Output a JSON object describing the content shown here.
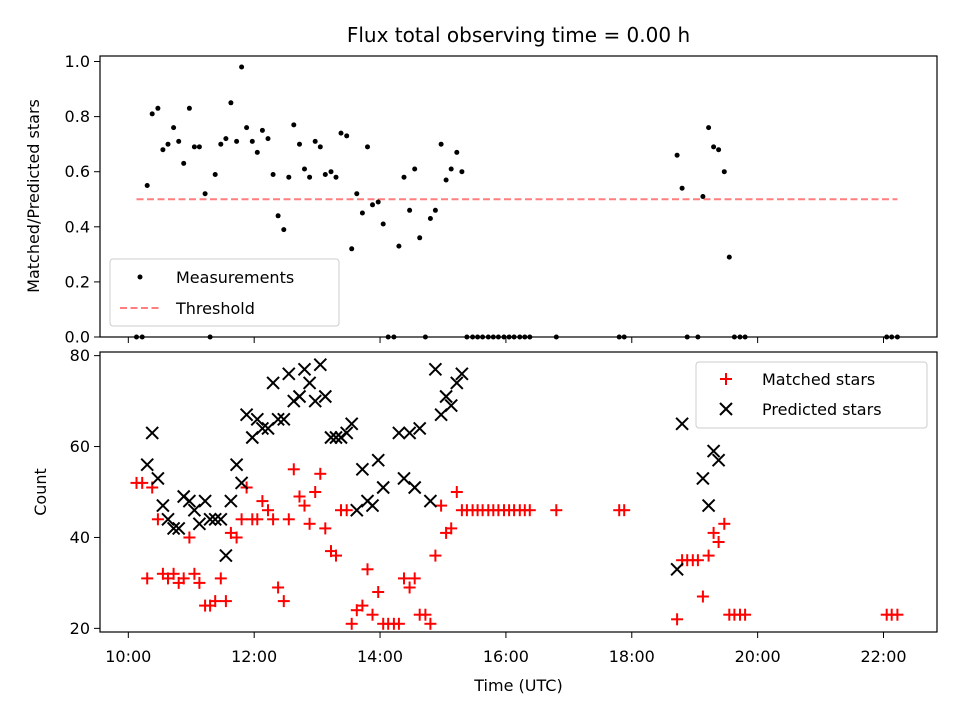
{
  "chart_data": [
    {
      "type": "scatter",
      "title": "Flux total observing time = 0.00 h",
      "xlabel": "",
      "ylabel": "Matched/Predicted stars",
      "xlim": [
        9.55,
        22.85
      ],
      "ylim": [
        0.0,
        1.02
      ],
      "yticks": [
        0.0,
        0.2,
        0.4,
        0.6,
        0.8,
        1.0
      ],
      "ytick_labels": [
        "0.0",
        "0.2",
        "0.4",
        "0.6",
        "0.8",
        "1.0"
      ],
      "legend_position": "lower-left",
      "series": [
        {
          "name": "Measurements",
          "marker": "dot",
          "color": "#000000",
          "points": [
            [
              10.13,
              0.0
            ],
            [
              10.22,
              0.0
            ],
            [
              10.3,
              0.55
            ],
            [
              10.38,
              0.81
            ],
            [
              10.47,
              0.83
            ],
            [
              10.55,
              0.68
            ],
            [
              10.63,
              0.7
            ],
            [
              10.72,
              0.76
            ],
            [
              10.8,
              0.71
            ],
            [
              10.88,
              0.63
            ],
            [
              10.97,
              0.83
            ],
            [
              11.05,
              0.69
            ],
            [
              11.13,
              0.69
            ],
            [
              11.22,
              0.52
            ],
            [
              11.3,
              0.0
            ],
            [
              11.38,
              0.59
            ],
            [
              11.47,
              0.7
            ],
            [
              11.55,
              0.72
            ],
            [
              11.63,
              0.85
            ],
            [
              11.72,
              0.71
            ],
            [
              11.8,
              0.98
            ],
            [
              11.88,
              0.76
            ],
            [
              11.97,
              0.71
            ],
            [
              12.05,
              0.67
            ],
            [
              12.13,
              0.75
            ],
            [
              12.22,
              0.72
            ],
            [
              12.3,
              0.59
            ],
            [
              12.38,
              0.44
            ],
            [
              12.47,
              0.39
            ],
            [
              12.55,
              0.58
            ],
            [
              12.63,
              0.77
            ],
            [
              12.72,
              0.7
            ],
            [
              12.8,
              0.61
            ],
            [
              12.88,
              0.58
            ],
            [
              12.97,
              0.71
            ],
            [
              13.05,
              0.69
            ],
            [
              13.13,
              0.59
            ],
            [
              13.22,
              0.6
            ],
            [
              13.3,
              0.58
            ],
            [
              13.38,
              0.74
            ],
            [
              13.47,
              0.73
            ],
            [
              13.55,
              0.32
            ],
            [
              13.63,
              0.52
            ],
            [
              13.72,
              0.45
            ],
            [
              13.8,
              0.69
            ],
            [
              13.88,
              0.48
            ],
            [
              13.97,
              0.49
            ],
            [
              14.05,
              0.41
            ],
            [
              14.13,
              0.0
            ],
            [
              14.22,
              0.0
            ],
            [
              14.3,
              0.33
            ],
            [
              14.38,
              0.58
            ],
            [
              14.47,
              0.46
            ],
            [
              14.55,
              0.61
            ],
            [
              14.63,
              0.36
            ],
            [
              14.72,
              0.0
            ],
            [
              14.8,
              0.43
            ],
            [
              14.88,
              0.46
            ],
            [
              14.97,
              0.7
            ],
            [
              15.05,
              0.57
            ],
            [
              15.13,
              0.61
            ],
            [
              15.22,
              0.67
            ],
            [
              15.3,
              0.6
            ],
            [
              15.38,
              0.0
            ],
            [
              15.47,
              0.0
            ],
            [
              15.55,
              0.0
            ],
            [
              15.63,
              0.0
            ],
            [
              15.72,
              0.0
            ],
            [
              15.8,
              0.0
            ],
            [
              15.88,
              0.0
            ],
            [
              15.97,
              0.0
            ],
            [
              16.05,
              0.0
            ],
            [
              16.13,
              0.0
            ],
            [
              16.22,
              0.0
            ],
            [
              16.3,
              0.0
            ],
            [
              16.38,
              0.0
            ],
            [
              16.8,
              0.0
            ],
            [
              17.8,
              0.0
            ],
            [
              17.88,
              0.0
            ],
            [
              18.72,
              0.66
            ],
            [
              18.8,
              0.54
            ],
            [
              18.88,
              0.0
            ],
            [
              19.05,
              0.0
            ],
            [
              19.13,
              0.51
            ],
            [
              19.22,
              0.76
            ],
            [
              19.3,
              0.69
            ],
            [
              19.38,
              0.68
            ],
            [
              19.47,
              0.6
            ],
            [
              19.55,
              0.29
            ],
            [
              19.63,
              0.0
            ],
            [
              19.72,
              0.0
            ],
            [
              19.8,
              0.0
            ],
            [
              22.05,
              0.0
            ],
            [
              22.13,
              0.0
            ],
            [
              22.22,
              0.0
            ]
          ]
        },
        {
          "name": "Threshold",
          "type": "line",
          "style": "dashed",
          "color": "#ff7f7f",
          "points": [
            [
              10.13,
              0.5
            ],
            [
              22.22,
              0.5
            ]
          ]
        }
      ]
    },
    {
      "type": "scatter",
      "title": "",
      "xlabel": "Time (UTC)",
      "ylabel": "Count",
      "xlim": [
        9.55,
        22.85
      ],
      "ylim": [
        19.2,
        80.8
      ],
      "yticks": [
        20,
        40,
        60,
        80
      ],
      "ytick_labels": [
        "20",
        "40",
        "60",
        "80"
      ],
      "xticks": [
        10,
        12,
        14,
        16,
        18,
        20,
        22
      ],
      "xtick_labels": [
        "10:00",
        "12:00",
        "14:00",
        "16:00",
        "18:00",
        "20:00",
        "22:00"
      ],
      "legend_position": "upper-right",
      "series": [
        {
          "name": "Matched stars",
          "marker": "plus",
          "color": "#ff0000",
          "points": [
            [
              10.13,
              52
            ],
            [
              10.22,
              52
            ],
            [
              10.3,
              31
            ],
            [
              10.38,
              51
            ],
            [
              10.47,
              44
            ],
            [
              10.55,
              32
            ],
            [
              10.63,
              31
            ],
            [
              10.72,
              32
            ],
            [
              10.8,
              30
            ],
            [
              10.88,
              31
            ],
            [
              10.97,
              40
            ],
            [
              11.05,
              32
            ],
            [
              11.13,
              30
            ],
            [
              11.22,
              25
            ],
            [
              11.3,
              25
            ],
            [
              11.38,
              26
            ],
            [
              11.47,
              31
            ],
            [
              11.55,
              26
            ],
            [
              11.63,
              41
            ],
            [
              11.72,
              40
            ],
            [
              11.8,
              44
            ],
            [
              11.88,
              51
            ],
            [
              11.97,
              44
            ],
            [
              12.05,
              44
            ],
            [
              12.13,
              48
            ],
            [
              12.22,
              46
            ],
            [
              12.3,
              44
            ],
            [
              12.38,
              29
            ],
            [
              12.47,
              26
            ],
            [
              12.55,
              44
            ],
            [
              12.63,
              55
            ],
            [
              12.72,
              49
            ],
            [
              12.8,
              47
            ],
            [
              12.88,
              43
            ],
            [
              12.97,
              50
            ],
            [
              13.05,
              54
            ],
            [
              13.13,
              42
            ],
            [
              13.22,
              37
            ],
            [
              13.3,
              36
            ],
            [
              13.38,
              46
            ],
            [
              13.47,
              46
            ],
            [
              13.55,
              21
            ],
            [
              13.63,
              24
            ],
            [
              13.72,
              25
            ],
            [
              13.8,
              33
            ],
            [
              13.88,
              23
            ],
            [
              13.97,
              28
            ],
            [
              14.05,
              21
            ],
            [
              14.13,
              21
            ],
            [
              14.22,
              21
            ],
            [
              14.3,
              21
            ],
            [
              14.38,
              31
            ],
            [
              14.47,
              29
            ],
            [
              14.55,
              31
            ],
            [
              14.63,
              23
            ],
            [
              14.72,
              23
            ],
            [
              14.8,
              21
            ],
            [
              14.88,
              36
            ],
            [
              14.97,
              47
            ],
            [
              15.05,
              41
            ],
            [
              15.13,
              42
            ],
            [
              15.22,
              50
            ],
            [
              15.3,
              46
            ],
            [
              15.38,
              46
            ],
            [
              15.47,
              46
            ],
            [
              15.55,
              46
            ],
            [
              15.63,
              46
            ],
            [
              15.72,
              46
            ],
            [
              15.8,
              46
            ],
            [
              15.88,
              46
            ],
            [
              15.97,
              46
            ],
            [
              16.05,
              46
            ],
            [
              16.13,
              46
            ],
            [
              16.22,
              46
            ],
            [
              16.3,
              46
            ],
            [
              16.38,
              46
            ],
            [
              16.8,
              46
            ],
            [
              17.8,
              46
            ],
            [
              17.88,
              46
            ],
            [
              18.72,
              22
            ],
            [
              18.8,
              35
            ],
            [
              18.88,
              35
            ],
            [
              18.97,
              35
            ],
            [
              19.05,
              35
            ],
            [
              19.13,
              27
            ],
            [
              19.22,
              36
            ],
            [
              19.3,
              41
            ],
            [
              19.38,
              39
            ],
            [
              19.47,
              43
            ],
            [
              19.55,
              23
            ],
            [
              19.63,
              23
            ],
            [
              19.72,
              23
            ],
            [
              19.8,
              23
            ],
            [
              22.05,
              23
            ],
            [
              22.13,
              23
            ],
            [
              22.22,
              23
            ]
          ]
        },
        {
          "name": "Predicted stars",
          "marker": "x",
          "color": "#000000",
          "points": [
            [
              10.3,
              56
            ],
            [
              10.38,
              63
            ],
            [
              10.47,
              53
            ],
            [
              10.55,
              47
            ],
            [
              10.63,
              44
            ],
            [
              10.72,
              42
            ],
            [
              10.8,
              42
            ],
            [
              10.88,
              49
            ],
            [
              10.97,
              48
            ],
            [
              11.05,
              46
            ],
            [
              11.13,
              43
            ],
            [
              11.22,
              48
            ],
            [
              11.3,
              44
            ],
            [
              11.38,
              44
            ],
            [
              11.47,
              44
            ],
            [
              11.55,
              36
            ],
            [
              11.63,
              48
            ],
            [
              11.72,
              56
            ],
            [
              11.8,
              52
            ],
            [
              11.88,
              67
            ],
            [
              11.97,
              62
            ],
            [
              12.05,
              66
            ],
            [
              12.13,
              64
            ],
            [
              12.22,
              64
            ],
            [
              12.3,
              74
            ],
            [
              12.38,
              66
            ],
            [
              12.47,
              66
            ],
            [
              12.55,
              76
            ],
            [
              12.63,
              70
            ],
            [
              12.72,
              71
            ],
            [
              12.8,
              77
            ],
            [
              12.88,
              74
            ],
            [
              12.97,
              70
            ],
            [
              13.05,
              78
            ],
            [
              13.13,
              71
            ],
            [
              13.22,
              62
            ],
            [
              13.3,
              62
            ],
            [
              13.38,
              62
            ],
            [
              13.47,
              63
            ],
            [
              13.55,
              65
            ],
            [
              13.63,
              46
            ],
            [
              13.72,
              55
            ],
            [
              13.8,
              48
            ],
            [
              13.88,
              47
            ],
            [
              13.97,
              57
            ],
            [
              14.05,
              51
            ],
            [
              14.3,
              63
            ],
            [
              14.38,
              53
            ],
            [
              14.47,
              63
            ],
            [
              14.55,
              51
            ],
            [
              14.63,
              64
            ],
            [
              14.8,
              48
            ],
            [
              14.88,
              77
            ],
            [
              14.97,
              67
            ],
            [
              15.05,
              71
            ],
            [
              15.13,
              69
            ],
            [
              15.22,
              74
            ],
            [
              15.3,
              76
            ],
            [
              18.72,
              33
            ],
            [
              18.8,
              65
            ],
            [
              19.13,
              53
            ],
            [
              19.22,
              47
            ],
            [
              19.3,
              59
            ],
            [
              19.38,
              57
            ]
          ]
        }
      ]
    }
  ]
}
